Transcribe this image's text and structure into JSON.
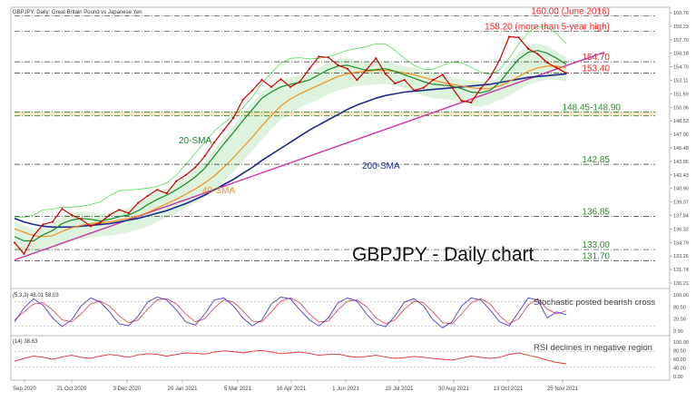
{
  "header": {
    "symbol_line": "GBPJPY, Daily:  Great Britain Pound vs Japanese Yen"
  },
  "chart_data": {
    "type": "line",
    "title": "GBPJPY - Daily chart",
    "price_axis": {
      "ylim": [
        128.5,
        161.0
      ]
    },
    "y_ticks": [
      "160.76",
      "159.23",
      "157.70",
      "156.18",
      "154.70",
      "153.11",
      "151.59",
      "150.06",
      "148.53",
      "147.00",
      "145.48",
      "143.95",
      "142.43",
      "140.90",
      "139.37",
      "137.84",
      "136.32",
      "134.79",
      "133.26",
      "131.74",
      "130.21"
    ],
    "x_ticks": [
      "Sep 2020",
      "21 Oct 2020",
      "3 Dec 2020",
      "20 Jan 2021",
      "5 Mar 2021",
      "16 Apr 2021",
      "1 Jun 2021",
      "15 Jul 2021",
      "30 Aug 2021",
      "13 Oct 2021",
      "25 Nov 2021"
    ],
    "series": [
      {
        "name": "",
        "values": [
          133.8,
          132.5,
          134.6,
          135.9,
          136.2,
          137.7,
          137.0,
          136.5,
          135.7,
          136.1,
          137.0,
          137.6,
          137.2,
          138.4,
          139.2,
          139.9,
          139.5,
          140.9,
          141.6,
          142.5,
          143.8,
          145.4,
          146.8,
          148.2,
          150.3,
          151.4,
          152.6,
          151.8,
          152.7,
          151.8,
          152.4,
          153.9,
          155.3,
          155.2,
          154.3,
          153.9,
          152.6,
          153.8,
          155.1,
          153.3,
          152.2,
          152.6,
          151.4,
          151.7,
          152.6,
          153.2,
          151.7,
          150.2,
          150.0,
          151.6,
          152.9,
          154.9,
          157.6,
          157.5,
          156.2,
          155.6,
          154.6,
          154.0,
          153.4
        ]
      },
      {
        "name": "20-SMA",
        "values": [
          134.5,
          134.0,
          134.0,
          134.7,
          135.2,
          136.0,
          136.4,
          136.6,
          136.5,
          136.3,
          136.5,
          136.8,
          137.0,
          137.5,
          138.2,
          138.8,
          139.3,
          139.9,
          140.6,
          141.4,
          142.4,
          143.8,
          145.2,
          146.5,
          147.9,
          149.2,
          150.5,
          151.2,
          151.8,
          152.1,
          152.3,
          152.6,
          153.2,
          153.8,
          154.2,
          154.3,
          154.0,
          153.7,
          153.8,
          153.9,
          153.6,
          153.2,
          152.8,
          152.4,
          152.1,
          152.0,
          151.9,
          151.6,
          151.2,
          151.1,
          151.4,
          152.3,
          153.7,
          155.0,
          155.8,
          156.0,
          155.7,
          155.1,
          154.4
        ]
      },
      {
        "name": "40-SMA",
        "values": [
          135.4,
          135.0,
          134.6,
          134.5,
          134.6,
          135.1,
          135.5,
          135.8,
          136.0,
          136.1,
          136.2,
          136.4,
          136.6,
          136.9,
          137.3,
          137.8,
          138.3,
          138.8,
          139.4,
          140.0,
          140.7,
          141.5,
          142.5,
          143.6,
          144.8,
          146.0,
          147.3,
          148.5,
          149.6,
          150.4,
          151.0,
          151.5,
          152.0,
          152.5,
          153.0,
          153.3,
          153.5,
          153.6,
          153.7,
          153.7,
          153.6,
          153.4,
          153.2,
          152.9,
          152.6,
          152.3,
          152.1,
          151.9,
          151.7,
          151.6,
          151.6,
          151.9,
          152.4,
          153.0,
          153.6,
          154.0,
          154.2,
          154.2,
          154.0
        ]
      },
      {
        "name": "200-SMA",
        "values": [
          136.6,
          136.2,
          135.9,
          135.7,
          135.6,
          135.6,
          135.6,
          135.7,
          135.8,
          135.9,
          136.0,
          136.2,
          136.4,
          136.6,
          136.9,
          137.2,
          137.5,
          137.9,
          138.3,
          138.8,
          139.3,
          139.9,
          140.5,
          141.1,
          141.8,
          142.5,
          143.3,
          144.0,
          144.7,
          145.4,
          146.1,
          146.8,
          147.4,
          148.0,
          148.6,
          149.2,
          149.7,
          150.1,
          150.5,
          150.8,
          151.0,
          151.2,
          151.3,
          151.4,
          151.5,
          151.6,
          151.7,
          151.8,
          151.9,
          152.0,
          152.1,
          152.3,
          152.5,
          152.7,
          152.9,
          153.0,
          153.1,
          153.2,
          153.3
        ]
      }
    ],
    "levels": [
      {
        "label": "160.00 (June 2016)",
        "value": 160.0,
        "color": "#ff2020",
        "style": "dashdot"
      },
      {
        "label": "158.20 (more than 5-year high)",
        "value": 158.2,
        "color": "#ff2020",
        "style": "dashdot"
      },
      {
        "label": "154.70",
        "value": 154.7,
        "color": "#ff2020",
        "style": "dashdot"
      },
      {
        "label": "153.40",
        "value": 153.4,
        "color": "#ff2020",
        "style": "dashdot"
      },
      {
        "label": "148.45-148.90",
        "value": 148.45,
        "value2": 148.9,
        "color": "#2e8b2e",
        "style": "zone"
      },
      {
        "label": "142.85",
        "value": 142.85,
        "color": "#2e8b2e",
        "style": "dashdot"
      },
      {
        "label": "136.85",
        "value": 136.85,
        "color": "#2e8b2e",
        "style": "dashdot"
      },
      {
        "label": "133.00",
        "value": 133.0,
        "color": "#2e8b2e",
        "style": "dashdot"
      },
      {
        "label": "131.70",
        "value": 131.7,
        "color": "#2e8b2e",
        "style": "dashdot"
      }
    ],
    "trendline": {
      "from": [
        0,
        131.8
      ],
      "to": [
        62,
        155.8
      ],
      "color": "#cc33aa"
    },
    "line_labels": {
      "sma20": "20-SMA",
      "sma40": "40-SMA",
      "sma200": "200-SMA"
    },
    "colors": {
      "price": "#cc0000",
      "sma20": "#1a8a2a",
      "sma40": "#f09020",
      "sma200": "#1c2a8c",
      "cloud": "#44bb44",
      "trend": "#cc33aa",
      "res": "#ff2020",
      "sup": "#2e8b2e"
    },
    "stochastic": {
      "header": "(5,3,3) 48.01 58.03",
      "annotation": "Stochastic posted bearish cross",
      "ylim": [
        0,
        100
      ],
      "ticks": [
        "100.00",
        "80.00",
        "20.00",
        "0.00"
      ],
      "k": [
        30,
        65,
        88,
        72,
        40,
        18,
        35,
        70,
        90,
        80,
        55,
        25,
        20,
        45,
        80,
        92,
        85,
        60,
        30,
        22,
        50,
        85,
        90,
        70,
        40,
        20,
        35,
        75,
        92,
        88,
        60,
        35,
        20,
        40,
        78,
        90,
        82,
        50,
        25,
        18,
        45,
        80,
        88,
        70,
        35,
        15,
        30,
        70,
        90,
        85,
        60,
        30,
        20,
        55,
        90,
        85,
        40,
        55,
        48
      ],
      "d": [
        35,
        55,
        75,
        78,
        60,
        35,
        30,
        50,
        75,
        82,
        70,
        45,
        28,
        35,
        62,
        85,
        88,
        75,
        50,
        30,
        38,
        65,
        85,
        80,
        58,
        32,
        30,
        55,
        82,
        90,
        78,
        50,
        30,
        32,
        60,
        82,
        85,
        68,
        40,
        25,
        35,
        62,
        82,
        78,
        55,
        28,
        25,
        50,
        78,
        88,
        75,
        45,
        25,
        38,
        72,
        88,
        62,
        50,
        58
      ]
    },
    "rsi": {
      "header": "(14) 38.63",
      "annotation": "RSI declines in negative region",
      "ylim": [
        0,
        100
      ],
      "ticks": [
        "100.00",
        "80.00",
        "60.00",
        "40.00",
        "0.00"
      ],
      "values": [
        45,
        52,
        58,
        55,
        50,
        56,
        60,
        55,
        52,
        58,
        62,
        59,
        55,
        61,
        64,
        62,
        58,
        62,
        66,
        65,
        63,
        68,
        71,
        69,
        66,
        70,
        72,
        68,
        64,
        66,
        68,
        65,
        60,
        62,
        63,
        58,
        55,
        57,
        60,
        56,
        52,
        54,
        57,
        55,
        52,
        50,
        48,
        53,
        58,
        55,
        52,
        55,
        62,
        66,
        60,
        55,
        48,
        42,
        38.63
      ]
    }
  }
}
